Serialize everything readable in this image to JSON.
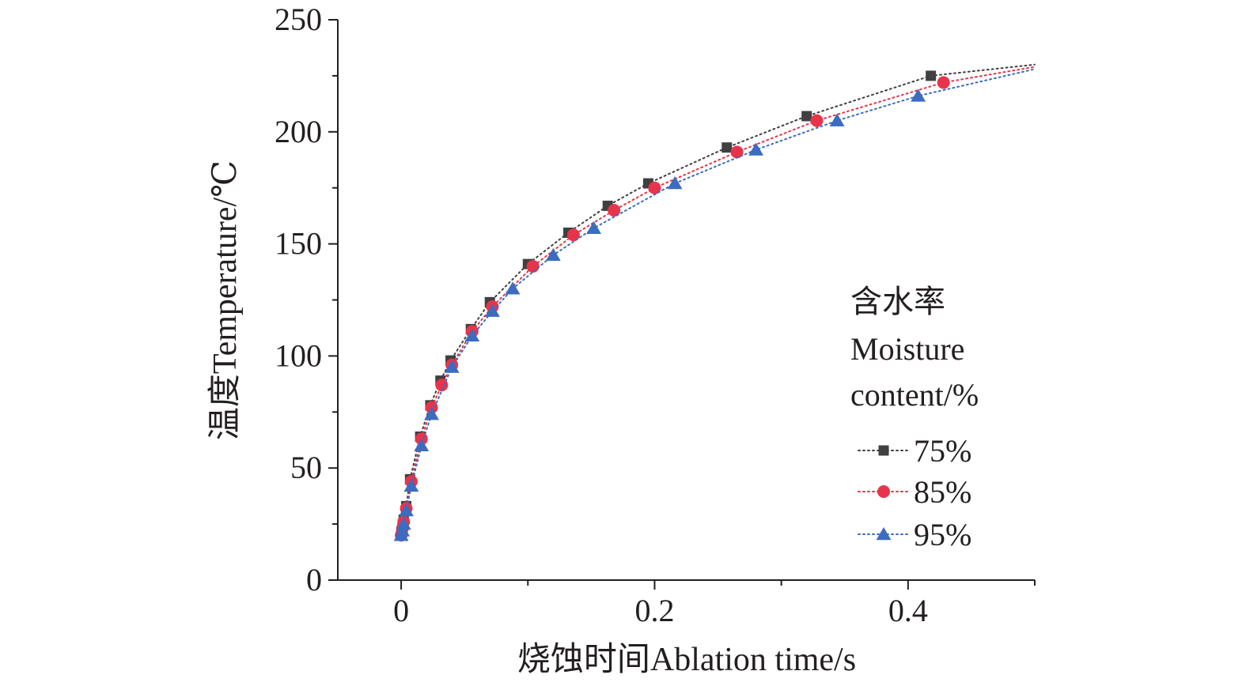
{
  "chart_data": {
    "type": "scatter",
    "title": "",
    "xlabel": "烧蚀时间Ablation time/s",
    "ylabel": "温度Temperature/℃",
    "xlim": [
      -0.05,
      0.5
    ],
    "ylim": [
      0,
      250
    ],
    "x_ticks": [
      "0",
      "0.2",
      "0.4"
    ],
    "y_ticks": [
      "0",
      "50",
      "100",
      "150",
      "200",
      "250"
    ],
    "grid": false,
    "legend": {
      "position": "right",
      "title_lines": [
        "含水率",
        "Moisture",
        "content/%"
      ]
    },
    "series": [
      {
        "name": "75%",
        "color": "#404040",
        "marker": "square",
        "line_style": "dotted",
        "x": [
          0.0,
          0.001,
          0.002,
          0.004,
          0.007,
          0.015,
          0.023,
          0.031,
          0.039,
          0.055,
          0.07,
          0.1,
          0.132,
          0.163,
          0.195,
          0.257,
          0.32,
          0.418
        ],
        "y": [
          20,
          23,
          27,
          33,
          45,
          64,
          78,
          89,
          98,
          112,
          124,
          141,
          155,
          167,
          177,
          193,
          207,
          225
        ],
        "trend_end": [
          0.5,
          230
        ]
      },
      {
        "name": "85%",
        "color": "#e8344a",
        "marker": "circle",
        "line_style": "dotted",
        "x": [
          0.0,
          0.001,
          0.002,
          0.004,
          0.008,
          0.016,
          0.024,
          0.032,
          0.04,
          0.056,
          0.072,
          0.104,
          0.136,
          0.168,
          0.2,
          0.265,
          0.328,
          0.428
        ],
        "y": [
          20,
          23,
          26,
          32,
          44,
          63,
          77,
          87,
          96,
          111,
          122,
          140,
          154,
          165,
          175,
          191,
          205,
          222
        ],
        "trend_end": [
          0.5,
          229
        ]
      },
      {
        "name": "95%",
        "color": "#3b6cc0",
        "marker": "triangle",
        "line_style": "dotted",
        "x": [
          0.0,
          0.001,
          0.002,
          0.004,
          0.008,
          0.016,
          0.024,
          0.04,
          0.056,
          0.072,
          0.088,
          0.12,
          0.152,
          0.216,
          0.28,
          0.344,
          0.408
        ],
        "y": [
          20,
          22,
          25,
          31,
          42,
          60,
          74,
          95,
          109,
          120,
          130,
          145,
          157,
          177,
          192,
          205,
          216
        ],
        "trend_end": [
          0.5,
          228
        ]
      }
    ]
  }
}
